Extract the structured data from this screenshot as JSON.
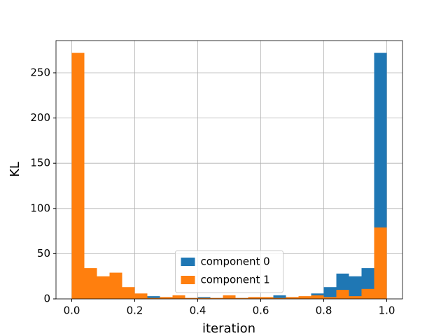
{
  "chart_data": {
    "type": "histogram",
    "xlabel": "iteration",
    "ylabel": "KL",
    "bins": [
      0,
      0.04,
      0.08,
      0.12,
      0.16,
      0.2,
      0.24,
      0.28,
      0.32,
      0.36,
      0.4,
      0.44,
      0.48,
      0.52,
      0.56,
      0.6,
      0.64,
      0.68,
      0.72,
      0.76,
      0.8,
      0.84,
      0.88,
      0.92,
      0.96,
      1
    ],
    "series": [
      {
        "name": "component 0",
        "color": "#1f77b4",
        "values": [
          79,
          11,
          3,
          10,
          2,
          4,
          3,
          2,
          1,
          1,
          2,
          1,
          1,
          1,
          2,
          1,
          4,
          2,
          1,
          6,
          13,
          28,
          25,
          34,
          272
        ]
      },
      {
        "name": "component 1",
        "color": "#ff7f0e",
        "values": [
          272,
          34,
          25,
          29,
          13,
          6,
          1,
          2,
          4,
          1,
          1,
          1,
          4,
          1,
          2,
          2,
          1,
          2,
          3,
          4,
          2,
          10,
          3,
          11,
          79
        ]
      }
    ],
    "xlim": [
      -0.05,
      1.05
    ],
    "ylim": [
      0,
      285.6
    ],
    "xticks": [
      {
        "value": 0,
        "label": "0.0"
      },
      0.2,
      0.4,
      0.6,
      0.8,
      {
        "value": 1,
        "label": "1.0"
      }
    ],
    "yticks": [
      0,
      50,
      100,
      150,
      200,
      250
    ],
    "grid": true,
    "legend": "lower center"
  }
}
